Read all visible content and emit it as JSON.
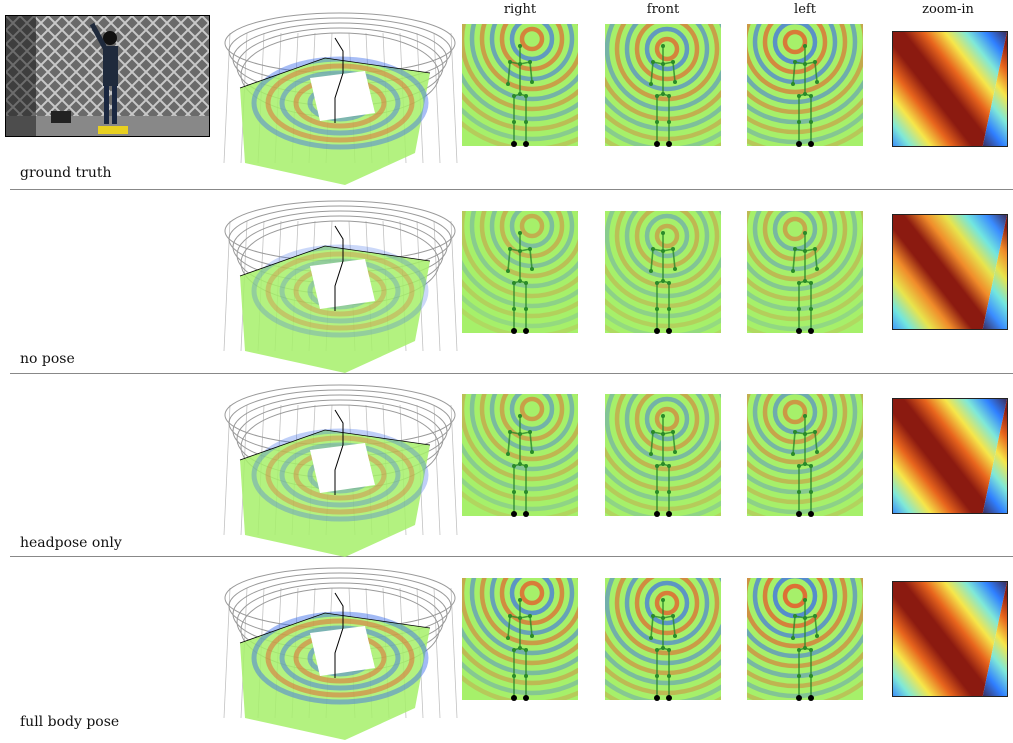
{
  "columns": {
    "right": "right",
    "front": "front",
    "left": "left",
    "zoom": "zoom-in"
  },
  "rows": [
    {
      "label": "ground truth",
      "zoom_colors": [
        "#3b2d5c",
        "#2f7fff",
        "#7fe8d8",
        "#f6e64a",
        "#e8651d",
        "#8b1a10"
      ]
    },
    {
      "label": "no pose",
      "zoom_colors": [
        "#3b2d5c",
        "#3a8cff",
        "#72e6df",
        "#e8e44d",
        "#f08b2a",
        "#8b1a10"
      ]
    },
    {
      "label": "headpose only",
      "zoom_colors": [
        "#3b2d5c",
        "#2f7fff",
        "#7fe8d8",
        "#f6e64a",
        "#e8651d",
        "#8b1a10"
      ]
    },
    {
      "label": "full body pose",
      "zoom_colors": [
        "#3b2d5c",
        "#2f7fff",
        "#7fe8d8",
        "#f6e64a",
        "#e8651d",
        "#8b1a10"
      ]
    }
  ],
  "colors": {
    "field_base": "#a6f06a",
    "ring_warm": "#e8562a",
    "ring_cool": "#3d6eea",
    "skeleton": "#2a8a2a",
    "dome_line": "#9a9a9a",
    "separator": "#888888"
  }
}
